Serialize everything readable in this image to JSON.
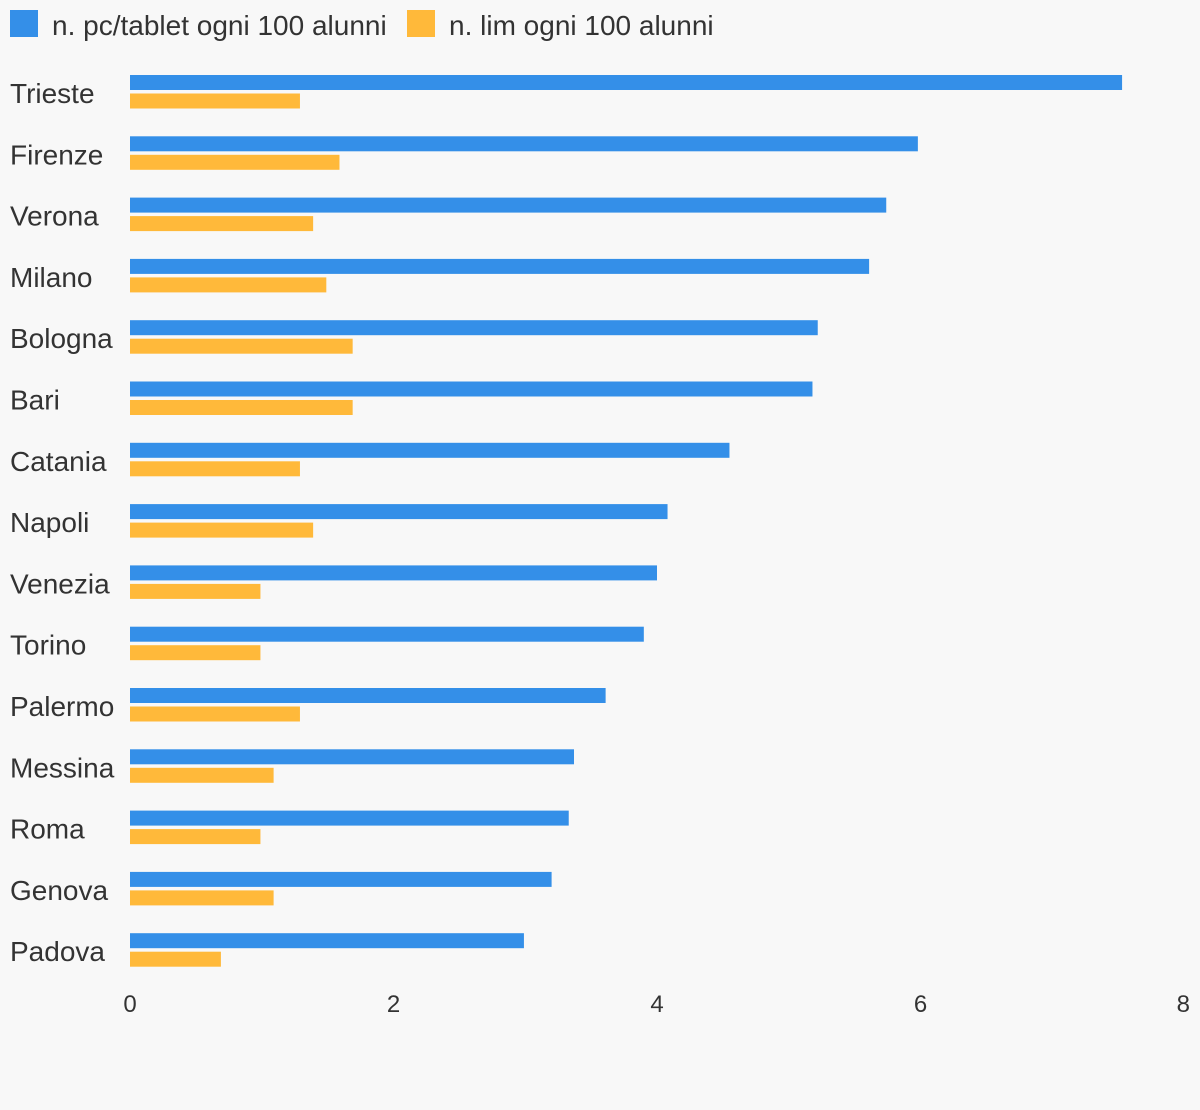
{
  "chart_data": {
    "type": "bar",
    "orientation": "horizontal",
    "categories": [
      "Trieste",
      "Firenze",
      "Verona",
      "Milano",
      "Bologna",
      "Bari",
      "Catania",
      "Napoli",
      "Venezia",
      "Torino",
      "Palermo",
      "Messina",
      "Roma",
      "Genova",
      "Padova"
    ],
    "series": [
      {
        "name": "n. pc/tablet ogni 100 alunni",
        "color": "#348fe8",
        "values": [
          7.53,
          5.98,
          5.74,
          5.61,
          5.22,
          5.18,
          4.55,
          4.08,
          4.0,
          3.9,
          3.61,
          3.37,
          3.33,
          3.2,
          2.99
        ]
      },
      {
        "name": "n. lim ogni 100 alunni",
        "color": "#ffb93a",
        "values": [
          1.29,
          1.59,
          1.39,
          1.49,
          1.69,
          1.69,
          1.29,
          1.39,
          0.99,
          0.99,
          1.29,
          1.09,
          0.99,
          1.09,
          0.69
        ]
      }
    ],
    "xlim": [
      0,
      8
    ],
    "xticks": [
      "0",
      "2",
      "4",
      "6",
      "8"
    ],
    "legend": "top-left",
    "grid": false,
    "title": "",
    "xlabel": "",
    "ylabel": ""
  }
}
